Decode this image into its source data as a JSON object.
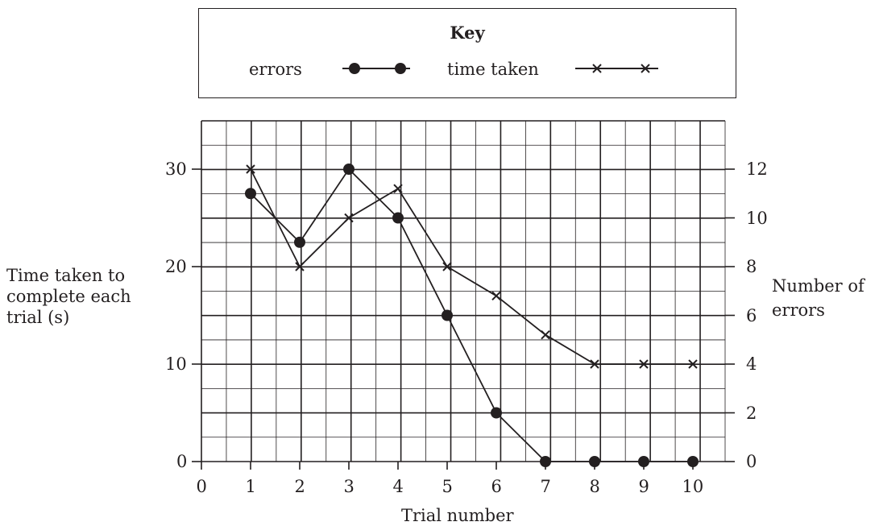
{
  "chart_data": {
    "type": "line",
    "key": {
      "title": "Key",
      "entries": [
        {
          "label": "errors",
          "marker": "filled-circle"
        },
        {
          "label": "time taken",
          "marker": "cross"
        }
      ]
    },
    "x": [
      1,
      2,
      3,
      4,
      5,
      6,
      7,
      8,
      9,
      10
    ],
    "xlabel": "Trial number",
    "xticks": [
      "0",
      "1",
      "2",
      "3",
      "4",
      "5",
      "6",
      "7",
      "8",
      "9",
      "10"
    ],
    "xlim": [
      0,
      10
    ],
    "ylabel_left": "Time taken to complete each trial (s)",
    "ylabel_left_lines": [
      "Time taken to",
      "complete each",
      "trial (s)"
    ],
    "yticks_left": [
      "0",
      "10",
      "20",
      "30"
    ],
    "ylim_left": [
      0,
      35
    ],
    "ylabel_right": "Number of errors",
    "ylabel_right_lines": [
      "Number of",
      "errors"
    ],
    "yticks_right": [
      "0",
      "2",
      "4",
      "6",
      "8",
      "10",
      "12"
    ],
    "ylim_right": [
      0,
      14
    ],
    "grid": true,
    "series": [
      {
        "name": "time taken",
        "axis": "left",
        "marker": "cross",
        "values": [
          30,
          20,
          25,
          28,
          20,
          17,
          13,
          10,
          10,
          10
        ]
      },
      {
        "name": "errors",
        "axis": "right",
        "marker": "filled-circle",
        "values": [
          11,
          9,
          12,
          10,
          6,
          2,
          0,
          0,
          0,
          0
        ]
      }
    ]
  },
  "colors": {
    "ink": "#231f20",
    "background": "#ffffff"
  }
}
